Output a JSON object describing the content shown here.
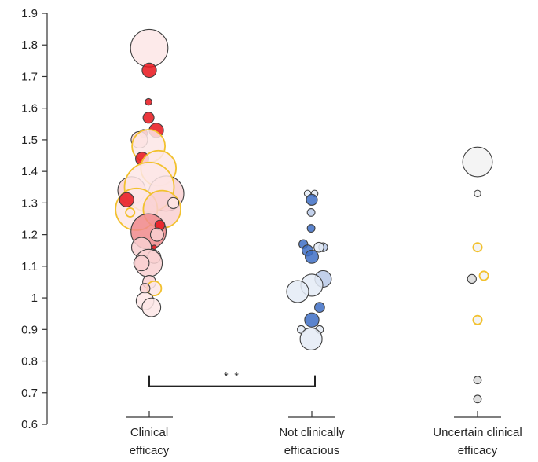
{
  "chart_data": {
    "type": "bubble-scatter",
    "title": "",
    "xlabel": "",
    "ylabel": "",
    "ylim": [
      0.6,
      1.9
    ],
    "yticks": [
      0.6,
      0.7,
      0.8,
      0.9,
      1,
      1.1,
      1.2,
      1.3,
      1.4,
      1.5,
      1.6,
      1.7,
      1.8,
      1.9
    ],
    "ytick_labels": [
      "0.6",
      "0.7",
      "0.8",
      "0.9",
      "1",
      "1.1",
      "1.2",
      "1.3",
      "1.4",
      "1.5",
      "1.6",
      "1.7",
      "1.8",
      "1.9"
    ],
    "categories": [
      {
        "line1": "Clinical",
        "line2": "efficacy"
      },
      {
        "line1": "Not clinically",
        "line2": "efficacious"
      },
      {
        "line1": "Uncertain clinical",
        "line2": "efficacy"
      }
    ],
    "significance": {
      "label": "* *",
      "between": [
        0,
        1
      ],
      "y": 0.74
    },
    "colors": {
      "red_strong": "#e8141b",
      "red_mid": "#f08a8c",
      "red_light": "#f9d0d1",
      "red_pale": "#fde6e6",
      "blue_strong": "#3e6fc6",
      "blue_mid": "#b9c9e8",
      "blue_light": "#e4ebf6",
      "grey": "#d9d9d9",
      "grey_light": "#f2f2f2",
      "outline": "#404040",
      "gold": "#f2c12e"
    },
    "series": [
      {
        "category": 0,
        "points": [
          {
            "y": 1.79,
            "dx": 0,
            "size": 3.4,
            "fill": "red_pale",
            "stroke": "outline"
          },
          {
            "y": 1.72,
            "dx": 0,
            "size": 1.3,
            "fill": "red_strong",
            "stroke": "outline"
          },
          {
            "y": 1.62,
            "dx": -0.05,
            "size": 0.6,
            "fill": "red_strong",
            "stroke": "outline"
          },
          {
            "y": 1.57,
            "dx": -0.05,
            "size": 1.0,
            "fill": "red_strong",
            "stroke": "outline"
          },
          {
            "y": 1.53,
            "dx": 0.5,
            "size": 1.3,
            "fill": "red_strong",
            "stroke": "outline"
          },
          {
            "y": 1.52,
            "dx": -0.4,
            "size": 0.7,
            "fill": "red_strong",
            "stroke": "outline"
          },
          {
            "y": 1.5,
            "dx": -0.7,
            "size": 1.5,
            "fill": "red_light",
            "stroke": "outline"
          },
          {
            "y": 1.48,
            "dx": -0.05,
            "size": 3.0,
            "fill": "red_pale",
            "stroke": "gold"
          },
          {
            "y": 1.44,
            "dx": -0.5,
            "size": 1.2,
            "fill": "red_strong",
            "stroke": "outline"
          },
          {
            "y": 1.41,
            "dx": 0.65,
            "size": 3.2,
            "fill": "red_pale",
            "stroke": "gold"
          },
          {
            "y": 1.34,
            "dx": -1.25,
            "size": 2.5,
            "fill": "red_light",
            "stroke": "outline"
          },
          {
            "y": 1.33,
            "dx": 1.2,
            "size": 3.2,
            "fill": "red_light",
            "stroke": "outline"
          },
          {
            "y": 1.35,
            "dx": 0,
            "size": 4.5,
            "fill": "red_pale",
            "stroke": "gold"
          },
          {
            "y": 1.28,
            "dx": -0.9,
            "size": 3.8,
            "fill": "red_pale",
            "stroke": "gold"
          },
          {
            "y": 1.28,
            "dx": 0.9,
            "size": 3.4,
            "fill": "red_light",
            "stroke": "gold"
          },
          {
            "y": 1.31,
            "dx": -1.6,
            "size": 1.3,
            "fill": "red_strong",
            "stroke": "outline"
          },
          {
            "y": 1.3,
            "dx": 1.7,
            "size": 1.0,
            "fill": "red_pale",
            "stroke": "outline"
          },
          {
            "y": 1.27,
            "dx": -1.35,
            "size": 0.8,
            "fill": "red_pale",
            "stroke": "gold"
          },
          {
            "y": 1.21,
            "dx": -0.05,
            "size": 3.2,
            "fill": "red_mid",
            "stroke": "outline"
          },
          {
            "y": 1.23,
            "dx": 0.75,
            "size": 0.9,
            "fill": "red_strong",
            "stroke": "outline"
          },
          {
            "y": 1.2,
            "dx": 0.55,
            "size": 1.2,
            "fill": "red_light",
            "stroke": "outline"
          },
          {
            "y": 1.16,
            "dx": -0.55,
            "size": 1.8,
            "fill": "red_light",
            "stroke": "outline"
          },
          {
            "y": 1.16,
            "dx": 0.35,
            "size": 0.4,
            "fill": "red_strong",
            "stroke": "outline"
          },
          {
            "y": 1.13,
            "dx": 0.35,
            "size": 1.2,
            "fill": "red_light",
            "stroke": "outline"
          },
          {
            "y": 1.11,
            "dx": -0.05,
            "size": 2.5,
            "fill": "red_light",
            "stroke": "outline"
          },
          {
            "y": 1.11,
            "dx": -0.55,
            "size": 1.4,
            "fill": "red_light",
            "stroke": "outline"
          },
          {
            "y": 1.05,
            "dx": 0,
            "size": 1.2,
            "fill": "red_light",
            "stroke": "outline"
          },
          {
            "y": 1.03,
            "dx": 0.35,
            "size": 1.3,
            "fill": "red_pale",
            "stroke": "gold"
          },
          {
            "y": 1.03,
            "dx": -0.3,
            "size": 0.9,
            "fill": "red_light",
            "stroke": "outline"
          },
          {
            "y": 0.99,
            "dx": -0.3,
            "size": 1.6,
            "fill": "red_pale",
            "stroke": "outline"
          },
          {
            "y": 0.97,
            "dx": 0.15,
            "size": 1.7,
            "fill": "red_pale",
            "stroke": "outline"
          }
        ]
      },
      {
        "category": 1,
        "points": [
          {
            "y": 1.33,
            "dx": -0.3,
            "size": 0.6,
            "fill": "blue_light",
            "stroke": "outline"
          },
          {
            "y": 1.33,
            "dx": 0.2,
            "size": 0.6,
            "fill": "blue_light",
            "stroke": "outline"
          },
          {
            "y": 1.31,
            "dx": 0,
            "size": 1.0,
            "fill": "blue_strong",
            "stroke": "outline"
          },
          {
            "y": 1.27,
            "dx": -0.05,
            "size": 0.7,
            "fill": "blue_mid",
            "stroke": "outline"
          },
          {
            "y": 1.22,
            "dx": -0.05,
            "size": 0.7,
            "fill": "blue_strong",
            "stroke": "outline"
          },
          {
            "y": 1.17,
            "dx": -0.6,
            "size": 0.8,
            "fill": "blue_strong",
            "stroke": "outline"
          },
          {
            "y": 1.16,
            "dx": 0.8,
            "size": 0.8,
            "fill": "blue_mid",
            "stroke": "outline"
          },
          {
            "y": 1.15,
            "dx": -0.3,
            "size": 1.0,
            "fill": "blue_strong",
            "stroke": "outline"
          },
          {
            "y": 1.16,
            "dx": 0.5,
            "size": 0.9,
            "fill": "blue_light",
            "stroke": "outline"
          },
          {
            "y": 1.13,
            "dx": 0,
            "size": 1.2,
            "fill": "blue_strong",
            "stroke": "outline"
          },
          {
            "y": 1.06,
            "dx": 0.8,
            "size": 1.5,
            "fill": "blue_mid",
            "stroke": "outline"
          },
          {
            "y": 1.04,
            "dx": 0,
            "size": 2.0,
            "fill": "blue_light",
            "stroke": "outline"
          },
          {
            "y": 1.02,
            "dx": -1.0,
            "size": 2.0,
            "fill": "blue_light",
            "stroke": "outline"
          },
          {
            "y": 0.97,
            "dx": 0.55,
            "size": 0.9,
            "fill": "blue_strong",
            "stroke": "outline"
          },
          {
            "y": 0.9,
            "dx": -0.75,
            "size": 0.7,
            "fill": "blue_light",
            "stroke": "outline"
          },
          {
            "y": 0.9,
            "dx": 0.55,
            "size": 0.7,
            "fill": "blue_light",
            "stroke": "outline"
          },
          {
            "y": 0.93,
            "dx": 0,
            "size": 1.3,
            "fill": "blue_strong",
            "stroke": "outline"
          },
          {
            "y": 0.87,
            "dx": -0.05,
            "size": 2.0,
            "fill": "blue_light",
            "stroke": "outline"
          }
        ]
      },
      {
        "category": 2,
        "points": [
          {
            "y": 1.43,
            "dx": 0,
            "size": 2.7,
            "fill": "grey_light",
            "stroke": "outline"
          },
          {
            "y": 1.33,
            "dx": 0,
            "size": 0.6,
            "fill": "grey_light",
            "stroke": "outline"
          },
          {
            "y": 1.16,
            "dx": 0,
            "size": 0.8,
            "fill": "grey_light",
            "stroke": "gold"
          },
          {
            "y": 1.07,
            "dx": 0.45,
            "size": 0.8,
            "fill": "grey_light",
            "stroke": "gold"
          },
          {
            "y": 1.06,
            "dx": -0.4,
            "size": 0.8,
            "fill": "grey",
            "stroke": "outline"
          },
          {
            "y": 0.93,
            "dx": 0,
            "size": 0.8,
            "fill": "grey_light",
            "stroke": "gold"
          },
          {
            "y": 0.74,
            "dx": 0,
            "size": 0.7,
            "fill": "grey",
            "stroke": "outline"
          },
          {
            "y": 0.68,
            "dx": 0,
            "size": 0.7,
            "fill": "grey",
            "stroke": "outline"
          }
        ]
      }
    ]
  }
}
